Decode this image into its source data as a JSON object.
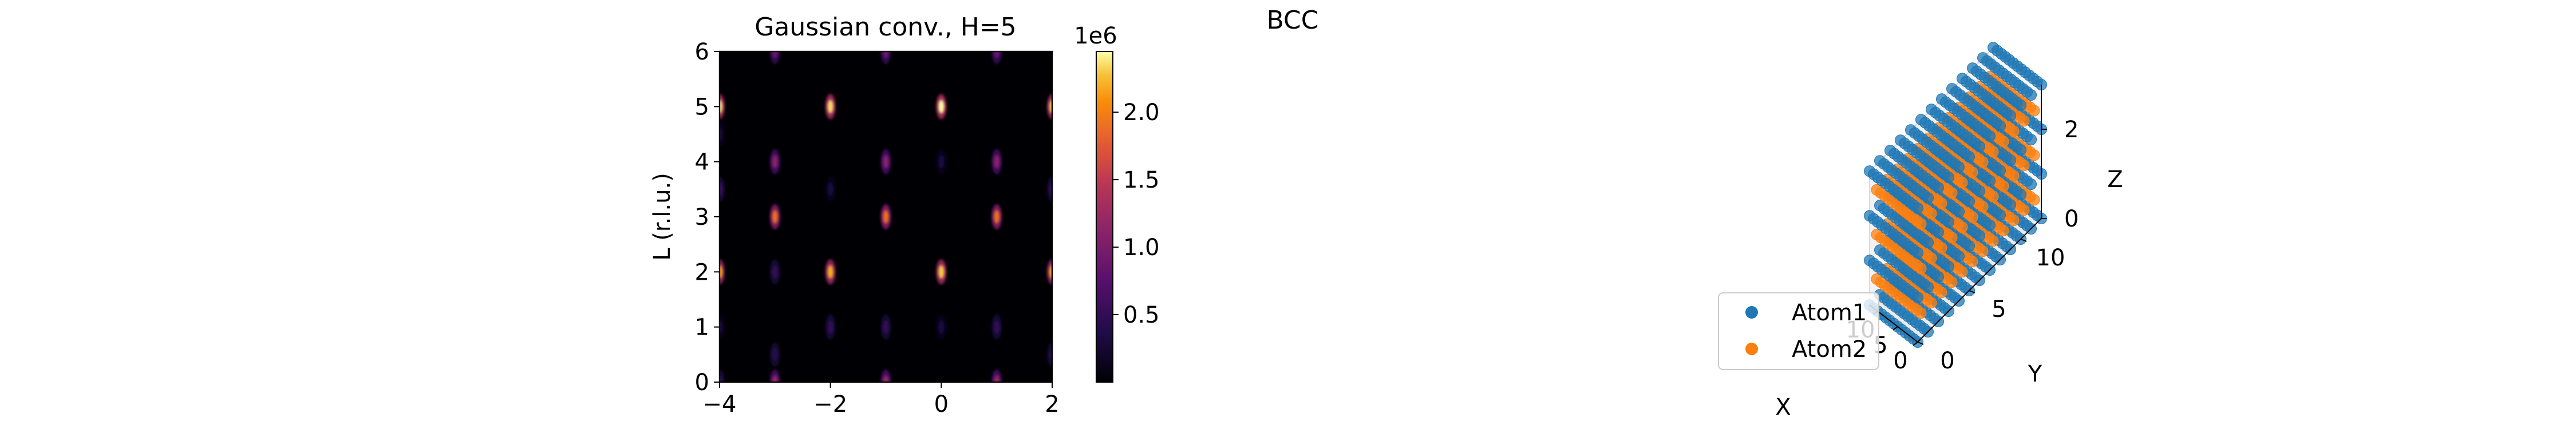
{
  "figure_title": "BCC",
  "colors": {
    "atom1": "#1f77b4",
    "atom2": "#ff7f0e",
    "colormap": "inferno"
  },
  "chart_data": [
    {
      "type": "heatmap",
      "title": "Gaussian conv., H=5",
      "xlabel": "",
      "ylabel": "L (r.l.u.)",
      "xlim": [
        -4,
        2
      ],
      "ylim": [
        0,
        6
      ],
      "xticks": [
        "−4",
        "−2",
        "0",
        "2"
      ],
      "yticks": [
        "0",
        "1",
        "2",
        "3",
        "4",
        "5",
        "6"
      ],
      "colorbar": {
        "offset_label": "1e6",
        "ticks": [
          "0.5",
          "1.0",
          "1.5",
          "2.0"
        ],
        "range": [
          0,
          2450000
        ],
        "tick_values": [
          500000,
          1000000,
          1500000,
          2000000
        ]
      },
      "peaks": [
        {
          "x": -4,
          "y": 5,
          "value": 2400000
        },
        {
          "x": -4,
          "y": 2,
          "value": 2200000
        },
        {
          "x": -4,
          "y": 3.5,
          "value": 600000
        },
        {
          "x": -4,
          "y": 4.5,
          "value": 300000
        },
        {
          "x": -4,
          "y": 1,
          "value": 300000
        },
        {
          "x": -4,
          "y": 0,
          "value": 500000
        },
        {
          "x": -3,
          "y": 6,
          "value": 900000
        },
        {
          "x": -3,
          "y": 3,
          "value": 1900000
        },
        {
          "x": -3,
          "y": 4,
          "value": 1100000
        },
        {
          "x": -3,
          "y": 2,
          "value": 500000
        },
        {
          "x": -3,
          "y": 0.5,
          "value": 400000
        },
        {
          "x": -3,
          "y": 0,
          "value": 1200000
        },
        {
          "x": -2,
          "y": 5,
          "value": 2350000
        },
        {
          "x": -2,
          "y": 2,
          "value": 2200000
        },
        {
          "x": -2,
          "y": 1,
          "value": 500000
        },
        {
          "x": -2,
          "y": 3.5,
          "value": 300000
        },
        {
          "x": -1,
          "y": 6,
          "value": 900000
        },
        {
          "x": -1,
          "y": 4,
          "value": 1100000
        },
        {
          "x": -1,
          "y": 3,
          "value": 1900000
        },
        {
          "x": -1,
          "y": 1,
          "value": 500000
        },
        {
          "x": -1,
          "y": 0,
          "value": 1200000
        },
        {
          "x": 0,
          "y": 5,
          "value": 2450000
        },
        {
          "x": 0,
          "y": 2,
          "value": 2300000
        },
        {
          "x": 0,
          "y": 4,
          "value": 300000
        },
        {
          "x": 0,
          "y": 1,
          "value": 300000
        },
        {
          "x": 1,
          "y": 6,
          "value": 900000
        },
        {
          "x": 1,
          "y": 4,
          "value": 1100000
        },
        {
          "x": 1,
          "y": 3,
          "value": 1900000
        },
        {
          "x": 1,
          "y": 1,
          "value": 500000
        },
        {
          "x": 1,
          "y": 0,
          "value": 1200000
        },
        {
          "x": 2,
          "y": 5,
          "value": 2300000
        },
        {
          "x": 2,
          "y": 2,
          "value": 2200000
        },
        {
          "x": 2,
          "y": 3.5,
          "value": 500000
        },
        {
          "x": 2,
          "y": 0.5,
          "value": 400000
        }
      ]
    },
    {
      "type": "scatter",
      "title": "",
      "xlabel": "X",
      "ylabel": "Y",
      "zlabel": "Z",
      "xticks": [
        "0",
        "5",
        "10"
      ],
      "yticks": [
        "0",
        "5",
        "10"
      ],
      "zticks": [
        "0",
        "2"
      ],
      "xlim": [
        0,
        12
      ],
      "ylim": [
        0,
        12
      ],
      "zlim": [
        0,
        3
      ],
      "legend_placement": "lower-left",
      "series": [
        {
          "name": "Atom1",
          "lattice": "simple cubic sites, spacing 1, x 0–12, y 0–12, z 0–3"
        },
        {
          "name": "Atom2",
          "lattice": "body-centre sites, offset 0.5, x 0.5–11.5, y 0.5–11.5, z 0.5–2.5"
        }
      ]
    }
  ]
}
